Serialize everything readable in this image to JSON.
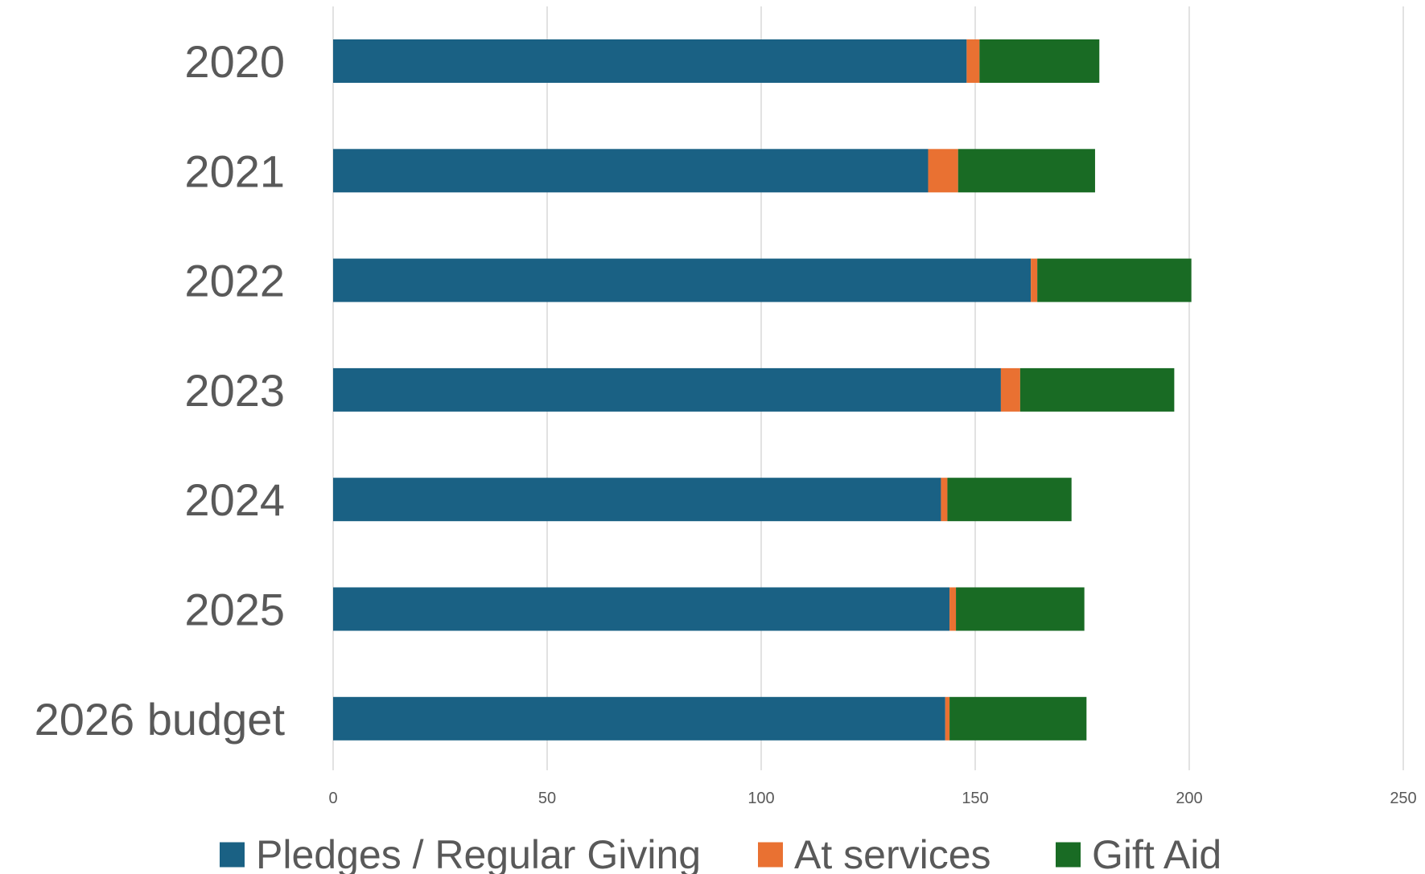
{
  "chart_data": {
    "type": "bar",
    "orientation": "horizontal",
    "stacked": true,
    "title": "",
    "xlabel": "",
    "ylabel": "",
    "categories": [
      "2020",
      "2021",
      "2022",
      "2023",
      "2024",
      "2025",
      "2026 budget"
    ],
    "series": [
      {
        "name": "Pledges / Regular Giving",
        "color": "#1a6184",
        "values": [
          148,
          139,
          163,
          156,
          142,
          144,
          143
        ]
      },
      {
        "name": "At services",
        "color": "#e97132",
        "values": [
          3,
          7,
          1.5,
          4.5,
          1.5,
          1.5,
          1
        ]
      },
      {
        "name": "Gift Aid",
        "color": "#196b24",
        "values": [
          28,
          32,
          36,
          36,
          29,
          30,
          32
        ]
      }
    ],
    "xlim": [
      0,
      250
    ],
    "xticks": [
      0,
      50,
      100,
      150,
      200,
      250
    ],
    "grid": true,
    "legend_position": "bottom"
  }
}
